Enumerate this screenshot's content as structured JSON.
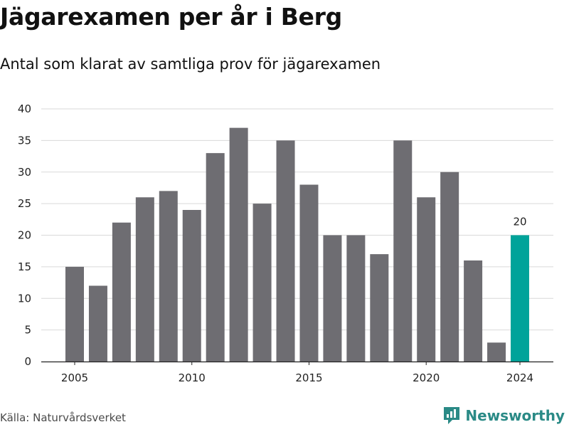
{
  "header": {
    "title": "Jägarexamen per år i Berg",
    "subtitle": "Antal som klarat av samtliga prov för jägarexamen"
  },
  "footer": {
    "source": "Källa: Naturvårdsverket",
    "brand": "Newsworthy",
    "brand_icon": "newsworthy-logo-icon"
  },
  "colors": {
    "bar": "#6e6d72",
    "highlight": "#00a39a",
    "grid": "#d9d9d9",
    "brand": "#2a8a86"
  },
  "chart_data": {
    "type": "bar",
    "title": "Jägarexamen per år i Berg",
    "subtitle": "Antal som klarat av samtliga prov för jägarexamen",
    "categories": [
      2005,
      2006,
      2007,
      2008,
      2009,
      2010,
      2011,
      2012,
      2013,
      2014,
      2015,
      2016,
      2017,
      2018,
      2019,
      2020,
      2021,
      2022,
      2023,
      2024
    ],
    "values": [
      15,
      12,
      22,
      26,
      27,
      24,
      33,
      37,
      25,
      35,
      28,
      20,
      20,
      17,
      35,
      26,
      30,
      16,
      3,
      20
    ],
    "highlight": {
      "category": 2024,
      "value": 20,
      "label": "20"
    },
    "x_ticks": [
      "2005",
      "2010",
      "2015",
      "2020",
      "2024"
    ],
    "y_ticks": [
      "0",
      "5",
      "10",
      "15",
      "20",
      "25",
      "30",
      "35",
      "40"
    ],
    "ylim": [
      0,
      40
    ],
    "grid": true,
    "xlabel": "",
    "ylabel": ""
  }
}
